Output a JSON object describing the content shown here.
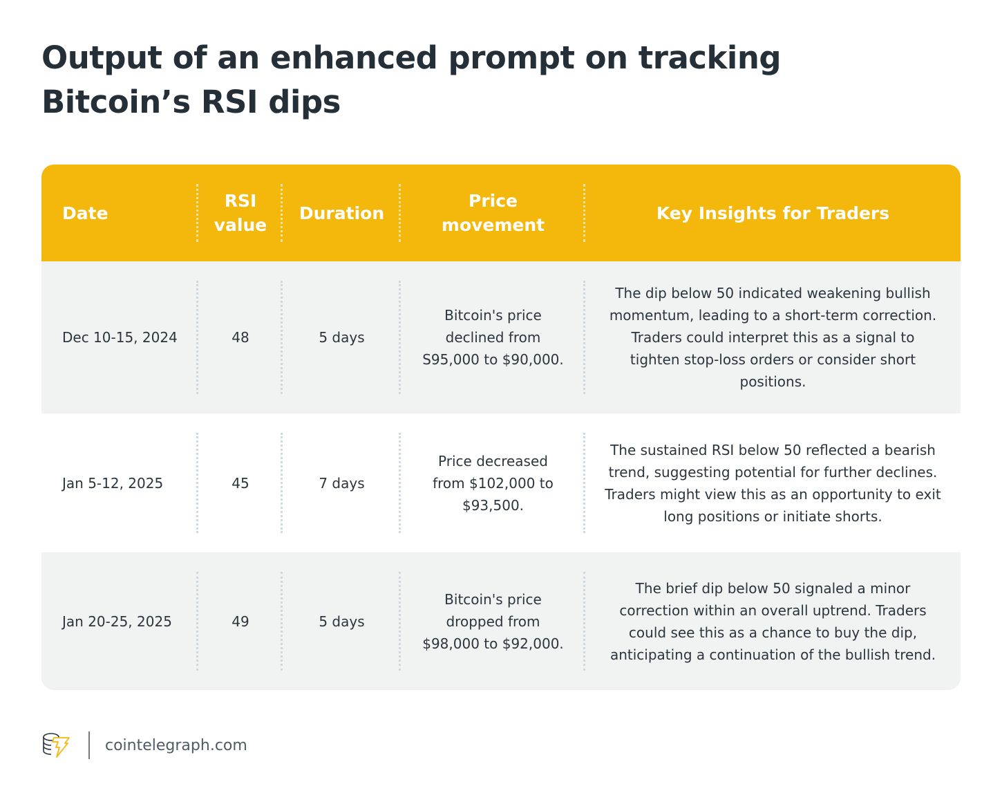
{
  "title": "Output of an enhanced prompt on tracking Bitcoin’s RSI dips",
  "headers": [
    "Date",
    "RSI value",
    "Duration",
    "Price movement",
    "Key Insights for Traders"
  ],
  "rows": [
    [
      "Dec 10-15, 2024",
      "48",
      "5 days",
      "Bitcoin's price declined from S95,000 to $90,000.",
      "The dip below 50 indicated weakening bullish momentum, leading to a short-term correction. Traders could interpret this as a signal to tighten stop-loss orders or consider short positions."
    ],
    [
      "Jan 5-12, 2025",
      "45",
      "7 days",
      "Price decreased from $102,000 to $93,500.",
      "The sustained RSI below 50 reflected a bearish trend, suggesting potential for further declines. Traders might view this as an opportunity to exit long positions or initiate shorts."
    ],
    [
      "Jan 20-25, 2025",
      "49",
      "5 days",
      "Bitcoin's price dropped from $98,000 to $92,000.",
      "The brief dip below 50 signaled a minor correction within an overall uptrend. Traders could see this as a chance to buy the dip, anticipating a continuation of the bullish trend."
    ]
  ],
  "footer": {
    "brand": "cointelegraph.com",
    "logo_icon": "cointelegraph-coin-bolt-icon"
  },
  "colors": {
    "header": "#f4b70b",
    "row_alt": "#f1f2f2"
  }
}
